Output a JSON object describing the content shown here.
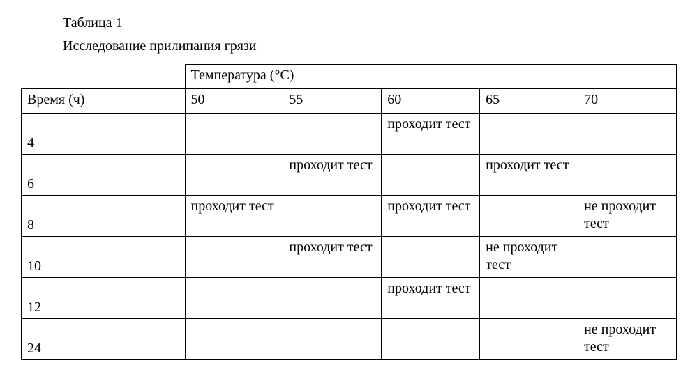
{
  "title_label": "Таблица 1",
  "subtitle": "Исследование прилипания грязи",
  "header_group": "Температура (°С)",
  "time_header": "Время (ч)",
  "temp_headers": [
    "50",
    "55",
    "60",
    "65",
    "70"
  ],
  "pass_text": "проходит тест",
  "fail_text": "не проходит тест",
  "rows": [
    {
      "time": "4",
      "cells": [
        "",
        "",
        "pass",
        "",
        ""
      ]
    },
    {
      "time": "6",
      "cells": [
        "",
        "pass",
        "",
        "pass",
        ""
      ]
    },
    {
      "time": "8",
      "cells": [
        "pass",
        "",
        "pass",
        "",
        "fail"
      ]
    },
    {
      "time": "10",
      "cells": [
        "",
        "pass",
        "",
        "fail",
        ""
      ]
    },
    {
      "time": "12",
      "cells": [
        "",
        "",
        "pass",
        "",
        ""
      ]
    },
    {
      "time": "24",
      "cells": [
        "",
        "",
        "",
        "",
        "fail"
      ]
    }
  ]
}
